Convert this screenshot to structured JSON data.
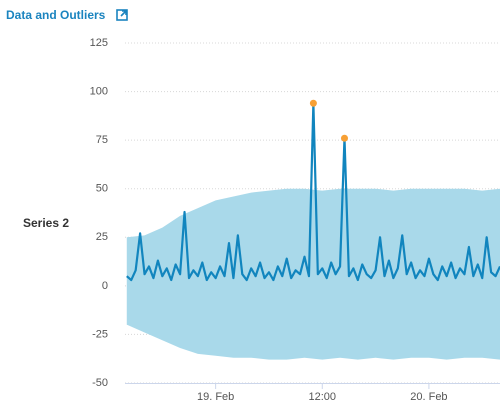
{
  "chart_data": {
    "type": "line",
    "title": "Data and Outliers",
    "ylabel": "Series 2",
    "x": [
      -10,
      -9.5,
      -9,
      -8.5,
      -8,
      -7.5,
      -7,
      -6.5,
      -6,
      -5.5,
      -5,
      -4.5,
      -4,
      -3.5,
      -3,
      -2.5,
      -2,
      -1.5,
      -1,
      -0.5,
      0,
      0.5,
      1,
      1.5,
      2,
      2.5,
      3,
      3.5,
      4,
      4.5,
      5,
      5.5,
      6,
      6.5,
      7,
      7.5,
      8,
      8.5,
      9,
      9.5,
      10,
      10.5,
      11,
      11.5,
      12,
      12.5,
      13,
      13.5,
      14,
      14.5,
      15,
      15.5,
      16,
      16.5,
      17,
      17.5,
      18,
      18.5,
      19,
      19.5,
      20,
      20.5,
      21,
      21.5,
      22,
      22.5,
      23,
      23.5,
      24,
      24.5,
      25,
      25.5,
      26,
      26.5,
      27,
      27.5,
      28,
      28.5,
      29,
      29.5,
      30,
      30.5,
      31,
      31.5,
      32
    ],
    "series": [
      {
        "color": "#1185be",
        "values": [
          5,
          3,
          8,
          27,
          6,
          10,
          4,
          13,
          5,
          9,
          3,
          11,
          6,
          38,
          4,
          8,
          5,
          12,
          3,
          7,
          4,
          10,
          5,
          22,
          4,
          26,
          6,
          3,
          9,
          5,
          12,
          4,
          7,
          3,
          10,
          5,
          14,
          4,
          8,
          6,
          15,
          5,
          94,
          6,
          9,
          4,
          12,
          6,
          10,
          76,
          5,
          9,
          3,
          11,
          6,
          4,
          8,
          25,
          5,
          13,
          4,
          9,
          26,
          6,
          12,
          4,
          8,
          5,
          14,
          6,
          3,
          10,
          5,
          12,
          4,
          9,
          6,
          20,
          5,
          11,
          4,
          25,
          7,
          5,
          10
        ]
      }
    ],
    "band": {
      "color": "#a9d9ea",
      "x": [
        -10,
        -8,
        -6,
        -4,
        -2,
        0,
        2,
        4,
        6,
        8,
        10,
        12,
        14,
        16,
        18,
        20,
        22,
        24,
        26,
        28,
        30,
        32
      ],
      "low": [
        -20,
        -24,
        -28,
        -32,
        -35,
        -36,
        -37,
        -37,
        -38,
        -38,
        -37,
        -38,
        -37,
        -38,
        -37,
        -38,
        -37,
        -37,
        -38,
        -37,
        -37,
        -38
      ],
      "high": [
        25,
        26,
        30,
        36,
        40,
        44,
        46,
        48,
        49,
        50,
        50,
        49,
        50,
        50,
        50,
        49,
        50,
        50,
        50,
        50,
        49,
        50
      ]
    },
    "outliers": {
      "color": "#f7a035",
      "x": [
        11,
        14.5
      ],
      "values": [
        94,
        76
      ]
    },
    "xlim": [
      -10.2,
      32
    ],
    "xticks": [
      {
        "value": 0,
        "label": "19. Feb"
      },
      {
        "value": 12,
        "label": "12:00"
      },
      {
        "value": 24,
        "label": "20. Feb"
      }
    ],
    "ylim": [
      -50,
      125
    ],
    "yticks": [
      -50,
      -25,
      0,
      25,
      50,
      75,
      100,
      125
    ],
    "grid": true
  }
}
